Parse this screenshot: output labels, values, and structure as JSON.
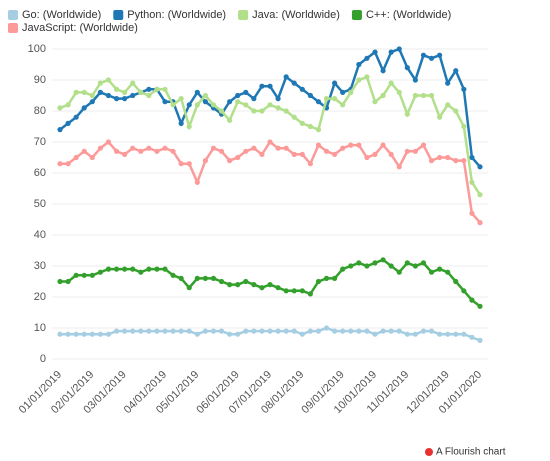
{
  "chart_data": {
    "type": "line",
    "categories": [
      "01/01/2019",
      null,
      null,
      null,
      "02/01/2019",
      null,
      null,
      null,
      "03/01/2019",
      null,
      null,
      null,
      null,
      "04/01/2019",
      null,
      null,
      null,
      "05/01/2019",
      null,
      null,
      null,
      null,
      "06/01/2019",
      null,
      null,
      null,
      "07/01/2019",
      null,
      null,
      null,
      "08/01/2019",
      null,
      null,
      null,
      null,
      "09/01/2019",
      null,
      null,
      null,
      "10/01/2019",
      null,
      null,
      null,
      "11/01/2019",
      null,
      null,
      null,
      null,
      "12/01/2019",
      null,
      null,
      null,
      "01/01/2020"
    ],
    "series": [
      {
        "name": "Go: (Worldwide)",
        "color": "#a6cee3",
        "values": [
          8,
          8,
          8,
          8,
          8,
          8,
          8,
          9,
          9,
          9,
          9,
          9,
          9,
          9,
          9,
          9,
          9,
          8,
          9,
          9,
          9,
          8,
          8,
          9,
          9,
          9,
          9,
          9,
          9,
          9,
          8,
          9,
          9,
          10,
          9,
          9,
          9,
          9,
          9,
          8,
          9,
          9,
          9,
          8,
          8,
          9,
          9,
          8,
          8,
          8,
          8,
          7,
          6
        ]
      },
      {
        "name": "Python: (Worldwide)",
        "color": "#1f78b4",
        "values": [
          74,
          76,
          78,
          81,
          83,
          86,
          85,
          84,
          84,
          85,
          86,
          87,
          87,
          83,
          83,
          76,
          82,
          86,
          83,
          81,
          79,
          83,
          85,
          86,
          84,
          88,
          88,
          84,
          91,
          89,
          87,
          85,
          83,
          81,
          89,
          86,
          87,
          95,
          97,
          99,
          93,
          99,
          100,
          94,
          90,
          98,
          97,
          98,
          89,
          93,
          87,
          65,
          62
        ]
      },
      {
        "name": "Java: (Worldwide)",
        "color": "#b2df8a",
        "values": [
          81,
          82,
          86,
          86,
          85,
          89,
          90,
          87,
          86,
          89,
          86,
          85,
          87,
          87,
          82,
          84,
          75,
          82,
          85,
          82,
          80,
          77,
          83,
          82,
          80,
          80,
          82,
          81,
          80,
          78,
          76,
          75,
          74,
          84,
          84,
          82,
          86,
          90,
          91,
          83,
          85,
          89,
          86,
          79,
          85,
          85,
          85,
          78,
          82,
          80,
          75,
          57,
          53
        ]
      },
      {
        "name": "C++: (Worldwide)",
        "color": "#33a02c",
        "values": [
          25,
          25,
          27,
          27,
          27,
          28,
          29,
          29,
          29,
          29,
          28,
          29,
          29,
          29,
          27,
          26,
          23,
          26,
          26,
          26,
          25,
          24,
          24,
          25,
          24,
          23,
          24,
          23,
          22,
          22,
          22,
          21,
          25,
          26,
          26,
          29,
          30,
          31,
          30,
          31,
          32,
          30,
          28,
          31,
          30,
          31,
          28,
          29,
          28,
          25,
          22,
          19,
          17
        ]
      },
      {
        "name": "JavaScript: (Worldwide)",
        "color": "#fb9a99",
        "values": [
          63,
          63,
          65,
          67,
          65,
          68,
          70,
          67,
          66,
          68,
          67,
          68,
          67,
          68,
          67,
          63,
          63,
          57,
          64,
          68,
          67,
          64,
          65,
          67,
          68,
          66,
          70,
          68,
          68,
          66,
          66,
          63,
          69,
          67,
          66,
          68,
          69,
          69,
          65,
          66,
          69,
          66,
          62,
          67,
          67,
          69,
          64,
          65,
          65,
          64,
          64,
          47,
          44
        ]
      }
    ],
    "ylim": [
      0,
      100
    ],
    "yticks": [
      0,
      10,
      20,
      30,
      40,
      50,
      60,
      70,
      80,
      90,
      100
    ],
    "grid": true,
    "legend": "top-left",
    "footer": "A Flourish chart"
  }
}
